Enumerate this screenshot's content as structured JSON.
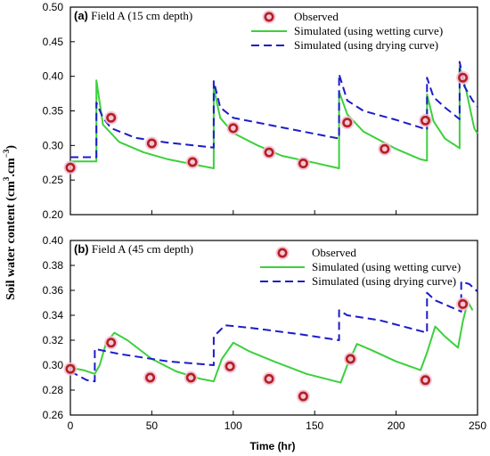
{
  "figure": {
    "ylabel_main": "Soil water content (cm",
    "ylabel_sup1": "3",
    "ylabel_mid": ".cm",
    "ylabel_sup2": "−3",
    "ylabel_end": ")",
    "xlabel": "Time (hr)"
  },
  "chart_data": [
    {
      "type": "line",
      "panel_tag": "(a)",
      "title": "Field A (15 cm depth)",
      "xlim": [
        0,
        250
      ],
      "ylim": [
        0.2,
        0.5
      ],
      "yticks": [
        "0.20",
        "0.25",
        "0.30",
        "0.35",
        "0.40",
        "0.45",
        "0.50"
      ],
      "xticks": [],
      "legend_position": "top-right",
      "colors": {
        "observed": "#b52020",
        "observed_glow": "#f2bdd5",
        "wetting": "#3cd03c",
        "drying": "#1c1cc8"
      },
      "series": [
        {
          "name": "Observed",
          "style": "marker",
          "points": [
            [
              0,
              0.268
            ],
            [
              25,
              0.34
            ],
            [
              50,
              0.303
            ],
            [
              75,
              0.276
            ],
            [
              100,
              0.325
            ],
            [
              122,
              0.29
            ],
            [
              143,
              0.274
            ],
            [
              170,
              0.333
            ],
            [
              193,
              0.295
            ],
            [
              218,
              0.336
            ],
            [
              241,
              0.398
            ]
          ]
        },
        {
          "name": "Simulated (using wetting curve)",
          "style": "solid",
          "points": [
            [
              0,
              0.277
            ],
            [
              16,
              0.277
            ],
            [
              16,
              0.394
            ],
            [
              20,
              0.33
            ],
            [
              30,
              0.305
            ],
            [
              45,
              0.29
            ],
            [
              60,
              0.28
            ],
            [
              75,
              0.273
            ],
            [
              88,
              0.267
            ],
            [
              88,
              0.383
            ],
            [
              92,
              0.34
            ],
            [
              100,
              0.318
            ],
            [
              115,
              0.3
            ],
            [
              130,
              0.285
            ],
            [
              150,
              0.275
            ],
            [
              165,
              0.267
            ],
            [
              165,
              0.378
            ],
            [
              170,
              0.345
            ],
            [
              180,
              0.32
            ],
            [
              200,
              0.295
            ],
            [
              215,
              0.28
            ],
            [
              219,
              0.278
            ],
            [
              219,
              0.374
            ],
            [
              223,
              0.335
            ],
            [
              230,
              0.31
            ],
            [
              239,
              0.296
            ],
            [
              239,
              0.415
            ],
            [
              243,
              0.38
            ],
            [
              248,
              0.325
            ],
            [
              250,
              0.317
            ]
          ]
        },
        {
          "name": "Simulated (using drying curve)",
          "style": "dashed",
          "points": [
            [
              0,
              0.283
            ],
            [
              16,
              0.283
            ],
            [
              16,
              0.362
            ],
            [
              20,
              0.34
            ],
            [
              25,
              0.325
            ],
            [
              40,
              0.311
            ],
            [
              60,
              0.304
            ],
            [
              88,
              0.297
            ],
            [
              88,
              0.393
            ],
            [
              92,
              0.355
            ],
            [
              100,
              0.34
            ],
            [
              130,
              0.326
            ],
            [
              165,
              0.31
            ],
            [
              165,
              0.403
            ],
            [
              170,
              0.365
            ],
            [
              180,
              0.35
            ],
            [
              200,
              0.337
            ],
            [
              219,
              0.323
            ],
            [
              219,
              0.398
            ],
            [
              223,
              0.37
            ],
            [
              230,
              0.355
            ],
            [
              239,
              0.338
            ],
            [
              239,
              0.421
            ],
            [
              242,
              0.385
            ],
            [
              247,
              0.365
            ],
            [
              250,
              0.356
            ]
          ]
        }
      ]
    },
    {
      "type": "line",
      "panel_tag": "(b)",
      "title": "Field A (45 cm depth)",
      "xlim": [
        0,
        250
      ],
      "ylim": [
        0.26,
        0.4
      ],
      "yticks": [
        "0.26",
        "0.28",
        "0.30",
        "0.32",
        "0.34",
        "0.36",
        "0.38",
        "0.40"
      ],
      "xticks": [
        "0",
        "50",
        "100",
        "150",
        "200",
        "250"
      ],
      "legend_position": "top-right",
      "colors": {
        "observed": "#b52020",
        "observed_glow": "#f2bdd5",
        "wetting": "#3cd03c",
        "drying": "#1c1cc8"
      },
      "series": [
        {
          "name": "Observed",
          "style": "marker",
          "points": [
            [
              0,
              0.297
            ],
            [
              25,
              0.318
            ],
            [
              49,
              0.29
            ],
            [
              74,
              0.29
            ],
            [
              98,
              0.299
            ],
            [
              122,
              0.289
            ],
            [
              143,
              0.275
            ],
            [
              172,
              0.305
            ],
            [
              218,
              0.288
            ],
            [
              241,
              0.349
            ]
          ]
        },
        {
          "name": "Simulated (using wetting curve)",
          "style": "solid",
          "points": [
            [
              0,
              0.298
            ],
            [
              8,
              0.296
            ],
            [
              15,
              0.293
            ],
            [
              18,
              0.3
            ],
            [
              22,
              0.318
            ],
            [
              27,
              0.326
            ],
            [
              35,
              0.32
            ],
            [
              50,
              0.305
            ],
            [
              65,
              0.295
            ],
            [
              80,
              0.289
            ],
            [
              88,
              0.287
            ],
            [
              93,
              0.305
            ],
            [
              100,
              0.318
            ],
            [
              110,
              0.311
            ],
            [
              125,
              0.303
            ],
            [
              145,
              0.293
            ],
            [
              166,
              0.286
            ],
            [
              170,
              0.3
            ],
            [
              176,
              0.317
            ],
            [
              185,
              0.312
            ],
            [
              200,
              0.303
            ],
            [
              215,
              0.296
            ],
            [
              219,
              0.31
            ],
            [
              224,
              0.331
            ],
            [
              230,
              0.323
            ],
            [
              238,
              0.314
            ],
            [
              241,
              0.335
            ],
            [
              244,
              0.351
            ],
            [
              247,
              0.344
            ]
          ]
        },
        {
          "name": "Simulated (using drying curve)",
          "style": "dashed",
          "points": [
            [
              0,
              0.295
            ],
            [
              10,
              0.288
            ],
            [
              15,
              0.287
            ],
            [
              15,
              0.313
            ],
            [
              30,
              0.309
            ],
            [
              60,
              0.303
            ],
            [
              88,
              0.3
            ],
            [
              88,
              0.323
            ],
            [
              95,
              0.332
            ],
            [
              110,
              0.33
            ],
            [
              140,
              0.325
            ],
            [
              165,
              0.32
            ],
            [
              165,
              0.344
            ],
            [
              170,
              0.34
            ],
            [
              190,
              0.336
            ],
            [
              219,
              0.326
            ],
            [
              219,
              0.358
            ],
            [
              224,
              0.352
            ],
            [
              240,
              0.343
            ],
            [
              240,
              0.367
            ],
            [
              245,
              0.365
            ],
            [
              250,
              0.359
            ]
          ]
        }
      ]
    }
  ]
}
